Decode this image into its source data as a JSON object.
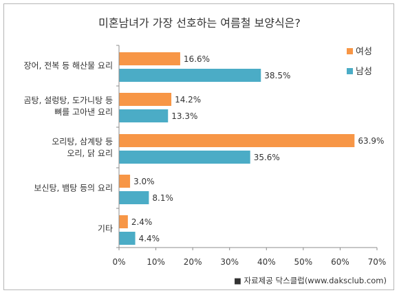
{
  "chart_data": {
    "type": "bar",
    "orientation": "horizontal",
    "title": "미혼남녀가 가장 선호하는 여름철 보양식은?",
    "categories": [
      [
        "장어, 전복 등 해산물 요리"
      ],
      [
        "곰탕, 설렁탕, 도가니탕 등",
        "뼈를 고아낸 요리"
      ],
      [
        "오리탕, 삼계탕 등",
        "오리, 닭 요리"
      ],
      [
        "보신탕, 뱀탕 등의 요리"
      ],
      [
        "기타"
      ]
    ],
    "series": [
      {
        "name": "여성",
        "color": "#f79646",
        "values": [
          16.6,
          14.2,
          63.9,
          3.0,
          2.4
        ],
        "labels": [
          "16.6%",
          "14.2%",
          "63.9%",
          "3.0%",
          "2.4%"
        ]
      },
      {
        "name": "남성",
        "color": "#4bacc6",
        "values": [
          38.5,
          13.3,
          35.6,
          8.1,
          4.4
        ],
        "labels": [
          "38.5%",
          "13.3%",
          "35.6%",
          "8.1%",
          "4.4%"
        ]
      }
    ],
    "xlim": [
      0,
      70
    ],
    "xticks": [
      "0%",
      "10%",
      "20%",
      "30%",
      "40%",
      "50%",
      "60%",
      "70%"
    ],
    "legend": "top-right",
    "grid": false,
    "source": "■ 자료제공 닥스클럽(www.daksclub.com)"
  }
}
